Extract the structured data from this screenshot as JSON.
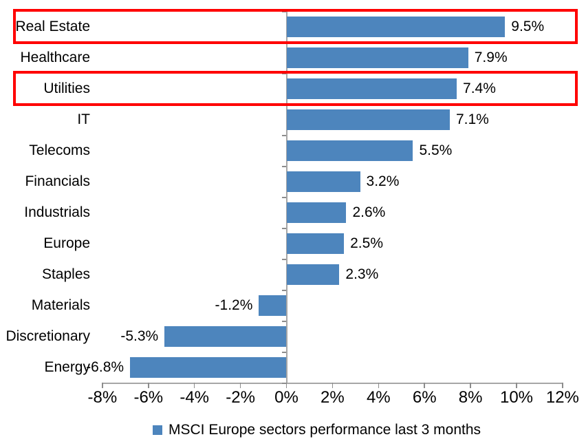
{
  "chart_data": {
    "type": "bar",
    "orientation": "horizontal",
    "legend": "MSCI Europe sectors performance last 3 months",
    "legend_position": "bottom-center",
    "categories": [
      "Real Estate",
      "Healthcare",
      "Utilities",
      "IT",
      "Telecoms",
      "Financials",
      "Industrials",
      "Europe",
      "Staples",
      "Materials",
      "Discretionary",
      "Energy"
    ],
    "values": [
      9.5,
      7.9,
      7.4,
      7.1,
      5.5,
      3.2,
      2.6,
      2.5,
      2.3,
      -1.2,
      -5.3,
      -6.8
    ],
    "data_labels": [
      "9.5%",
      "7.9%",
      "7.4%",
      "7.1%",
      "5.5%",
      "3.2%",
      "2.6%",
      "2.5%",
      "2.3%",
      "-1.2%",
      "-5.3%",
      "-6.8%"
    ],
    "x_axis": {
      "min": -8,
      "max": 12,
      "step": 2,
      "tick_labels": [
        "-8%",
        "-6%",
        "-4%",
        "-2%",
        "0%",
        "2%",
        "4%",
        "6%",
        "8%",
        "10%",
        "12%"
      ]
    },
    "grid": "off",
    "highlighted_categories": [
      "Real Estate",
      "Utilities"
    ],
    "colors": {
      "bar": "#4D85BD",
      "axis": "#A6A6A6",
      "tick": "#8C8C8C",
      "text": "#000000",
      "highlight": "#FF0000",
      "background": "#FFFFFF"
    }
  }
}
